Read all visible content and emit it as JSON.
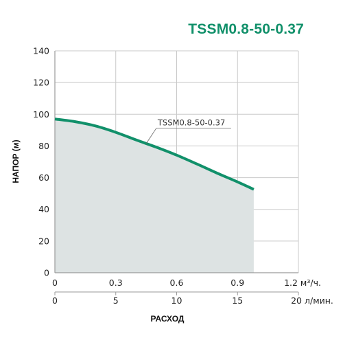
{
  "chart_data": {
    "type": "area",
    "title": "TSSM0.8-50-0.37",
    "ylabel": "НАПОР (м)",
    "xlabel": "РАСХОД",
    "ylim": [
      0,
      140
    ],
    "yticks": [
      0,
      20,
      40,
      60,
      80,
      100,
      120,
      140
    ],
    "x_primary": {
      "unit": "м³/ч.",
      "lim": [
        0,
        1.2
      ],
      "ticks": [
        "0",
        "0.3",
        "0.6",
        "0.9",
        "1.2"
      ]
    },
    "x_secondary": {
      "unit": "л/мин.",
      "lim": [
        0,
        20
      ],
      "ticks": [
        "0",
        "5",
        "10",
        "15",
        "20"
      ]
    },
    "grid": true,
    "series": [
      {
        "name": "TSSM0.8-50-0.37",
        "color": "#11906a",
        "fill": "#dde3e3",
        "x": [
          0,
          0.1,
          0.2,
          0.3,
          0.4,
          0.5,
          0.6,
          0.7,
          0.8,
          0.9,
          0.98
        ],
        "y": [
          97,
          95.3,
          92.6,
          88.6,
          83.8,
          79.2,
          74.2,
          68.6,
          62.8,
          57.3,
          52.6
        ]
      }
    ],
    "colors": {
      "title": "#11906a",
      "curve": "#11906a",
      "fill": "#dde3e3",
      "grid": "#c9c9c9",
      "axis": "#9a9a9a"
    }
  }
}
